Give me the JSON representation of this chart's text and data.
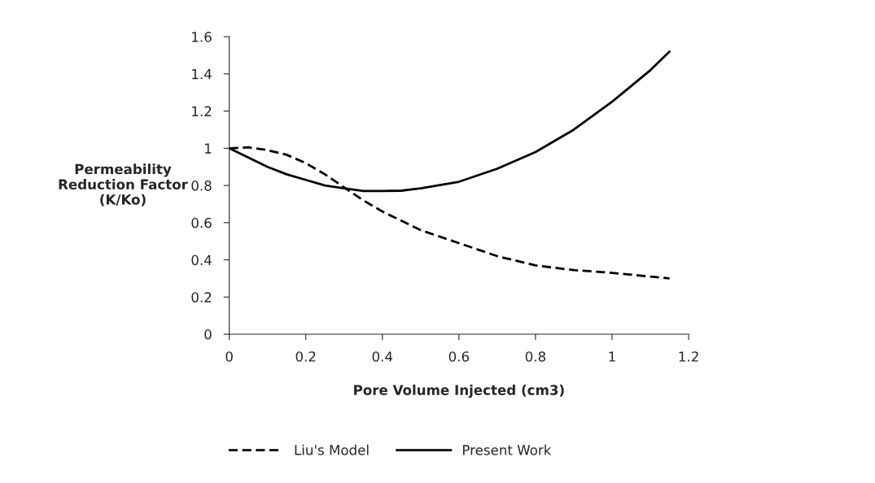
{
  "chart_data": {
    "type": "line",
    "xlabel": "Pore Volume Injected (cm3)",
    "ylabel": "Permeability\nReduction Factor\n(K/Ko)",
    "xlim": [
      0,
      1.2
    ],
    "xticks": [
      0,
      0.2,
      0.4,
      0.6,
      0.8,
      1,
      1.2
    ],
    "ylim": [
      0,
      1.6
    ],
    "yticks": [
      0,
      0.2,
      0.4,
      0.6,
      0.8,
      1,
      1.2,
      1.4,
      1.6
    ],
    "grid": false,
    "legend": "bottom",
    "series": [
      {
        "name": "Liu's Model",
        "color": "#000000",
        "line_style": "dashed",
        "x": [
          0,
          0.05,
          0.1,
          0.15,
          0.2,
          0.25,
          0.3,
          0.35,
          0.4,
          0.45,
          0.5,
          0.6,
          0.7,
          0.8,
          0.9,
          1.0,
          1.15
        ],
        "values": [
          1.0,
          1.005,
          0.99,
          0.965,
          0.92,
          0.86,
          0.79,
          0.72,
          0.66,
          0.61,
          0.56,
          0.49,
          0.42,
          0.37,
          0.345,
          0.33,
          0.3
        ]
      },
      {
        "name": "Present Work",
        "color": "#000000",
        "line_style": "solid",
        "x": [
          0,
          0.05,
          0.1,
          0.15,
          0.2,
          0.25,
          0.3,
          0.35,
          0.4,
          0.45,
          0.5,
          0.6,
          0.7,
          0.8,
          0.9,
          1.0,
          1.1,
          1.15
        ],
        "values": [
          1.0,
          0.95,
          0.9,
          0.86,
          0.83,
          0.8,
          0.785,
          0.77,
          0.77,
          0.772,
          0.785,
          0.82,
          0.89,
          0.98,
          1.1,
          1.25,
          1.42,
          1.52
        ]
      }
    ]
  }
}
